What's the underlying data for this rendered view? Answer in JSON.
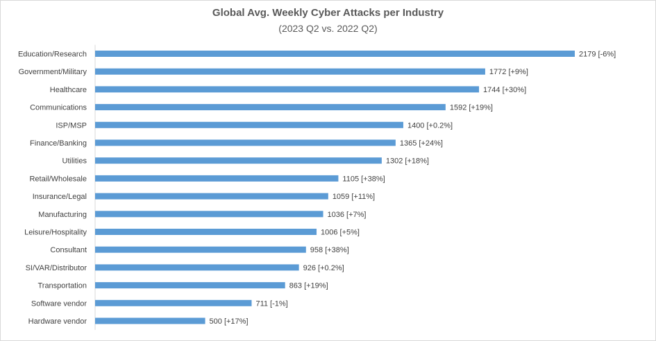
{
  "chart_data": {
    "type": "bar",
    "orientation": "horizontal",
    "title": "Global Avg. Weekly Cyber Attacks per Industry",
    "subtitle": "(2023 Q2 vs. 2022 Q2)",
    "categories": [
      "Education/Research",
      "Government/Military",
      "Healthcare",
      "Communications",
      "ISP/MSP",
      "Finance/Banking",
      "Utilities",
      "Retail/Wholesale",
      "Insurance/Legal",
      "Manufacturing",
      "Leisure/Hospitality",
      "Consultant",
      "SI/VAR/Distributor",
      "Transportation",
      "Software vendor",
      "Hardware vendor"
    ],
    "values": [
      2179,
      1772,
      1744,
      1592,
      1400,
      1365,
      1302,
      1105,
      1059,
      1036,
      1006,
      958,
      926,
      863,
      711,
      500
    ],
    "data_labels": [
      "2179 [-6%]",
      "1772 [+9%]",
      "1744 [+30%]",
      "1592 [+19%]",
      "1400 [+0.2%]",
      "1365 [+24%]",
      "1302 [+18%]",
      "1105 [+38%]",
      "1059 [+11%]",
      "1036 [+7%]",
      "1006 [+5%]",
      "958 [+38%]",
      "926 [+0.2%]",
      "863 [+19%]",
      "711 [-1%]",
      "500 [+17%]"
    ],
    "xlim": [
      0,
      2179
    ],
    "grid": false,
    "legend": "none",
    "bar_color": "#5b9bd5"
  }
}
